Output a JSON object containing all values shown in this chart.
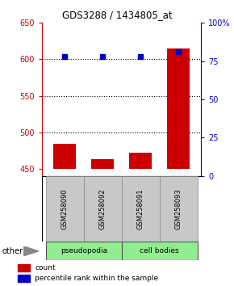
{
  "title": "GDS3288 / 1434805_at",
  "categories": [
    "GSM258090",
    "GSM258092",
    "GSM258091",
    "GSM258093"
  ],
  "bar_values": [
    484,
    463,
    472,
    615
  ],
  "dot_values": [
    78,
    78,
    78,
    81
  ],
  "bar_color": "#cc0000",
  "dot_color": "#0000cc",
  "ylim_left": [
    440,
    650
  ],
  "ylim_right": [
    0,
    100
  ],
  "yticks_left": [
    450,
    500,
    550,
    600,
    650
  ],
  "yticks_right": [
    0,
    25,
    50,
    75,
    100
  ],
  "ytick_labels_right": [
    "0",
    "25",
    "50",
    "75",
    "100%"
  ],
  "grid_values": [
    500,
    550,
    600
  ],
  "group_labels": [
    "pseudopodia",
    "cell bodies"
  ],
  "group_color": "#90ee90",
  "sample_bg_color": "#c8c8c8",
  "other_label": "other",
  "legend_count_label": "count",
  "legend_pct_label": "percentile rank within the sample",
  "bg_color": "#ffffff",
  "plot_bg": "#ffffff",
  "title_color": "#000000",
  "left_axis_color": "#cc0000",
  "right_axis_color": "#0000cc",
  "bar_bottom": 450
}
